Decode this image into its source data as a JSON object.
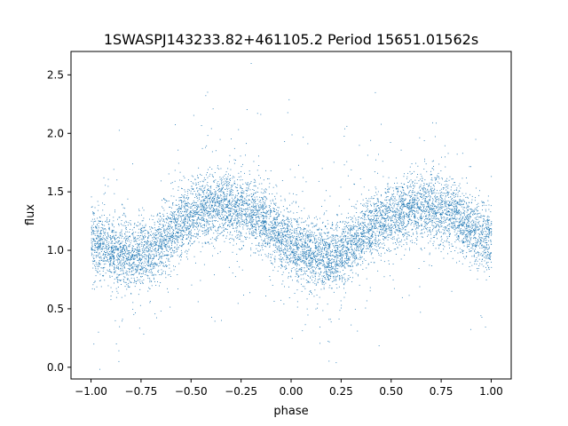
{
  "chart_data": {
    "type": "scatter",
    "title": "1SWASPJ143233.82+461105.2 Period 15651.01562s",
    "xlabel": "phase",
    "ylabel": "flux",
    "xlim": [
      -1.1,
      1.1
    ],
    "ylim": [
      -0.1,
      2.7
    ],
    "xticks": [
      -1.0,
      -0.75,
      -0.5,
      -0.25,
      0.0,
      0.25,
      0.5,
      0.75,
      1.0
    ],
    "xtick_labels": [
      "−1.00",
      "−0.75",
      "−0.50",
      "−0.25",
      "0.00",
      "0.25",
      "0.50",
      "0.75",
      "1.00"
    ],
    "yticks": [
      0.0,
      0.5,
      1.0,
      1.5,
      2.0,
      2.5
    ],
    "ytick_labels": [
      "0.0",
      "0.5",
      "1.0",
      "1.5",
      "2.0",
      "2.5"
    ],
    "grid": false,
    "point_color": "#1f77b4",
    "series": [
      {
        "x": [
          -1.0,
          -0.9,
          -0.8,
          -0.7,
          -0.6,
          -0.5,
          -0.4,
          -0.3,
          -0.2,
          -0.1,
          0.0,
          0.1,
          0.2,
          0.3,
          0.4,
          0.5,
          0.6,
          0.7,
          0.8,
          0.9,
          1.0
        ],
        "y": [
          1.1,
          1.0,
          0.95,
          0.98,
          1.15,
          1.3,
          1.38,
          1.38,
          1.32,
          1.2,
          1.05,
          0.95,
          0.93,
          1.05,
          1.2,
          1.3,
          1.35,
          1.38,
          1.32,
          1.2,
          1.1
        ]
      }
    ]
  }
}
